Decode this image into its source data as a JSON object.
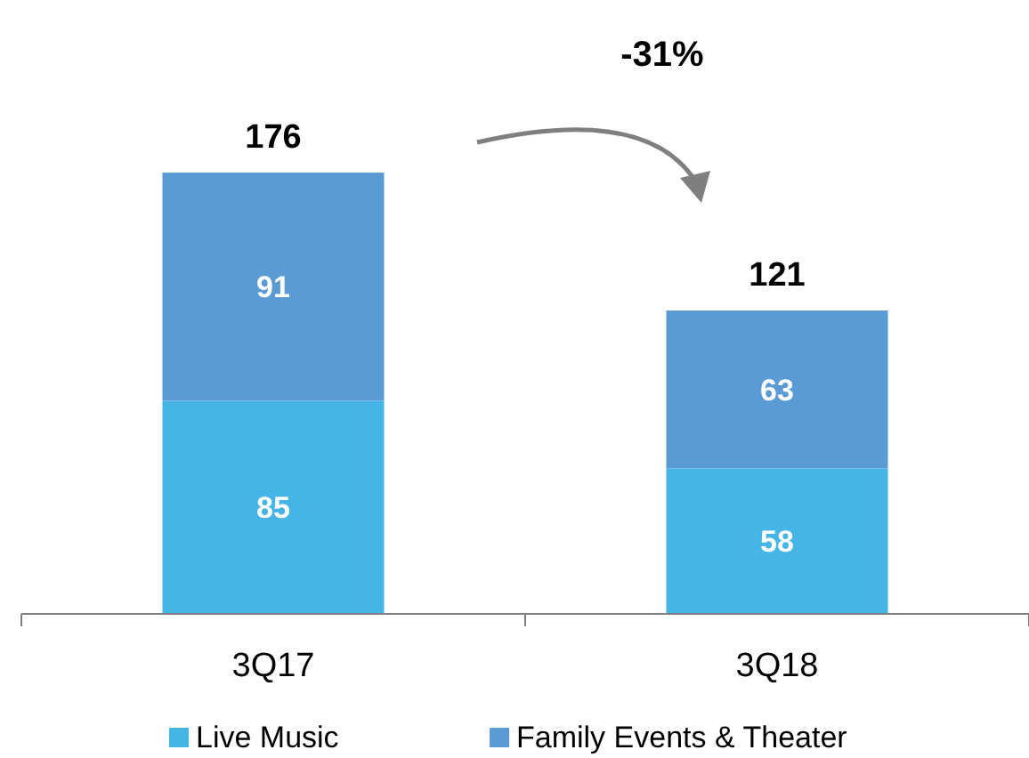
{
  "chart_data": {
    "type": "bar",
    "stacked": true,
    "data_labels": true,
    "legend": "bottom",
    "categories": [
      "3Q17",
      "3Q18"
    ],
    "series": [
      {
        "name": "Live Music",
        "color": "#45b5e5",
        "values": [
          85,
          58
        ]
      },
      {
        "name": "Family Events & Theater",
        "color": "#5b9bd5",
        "values": [
          91,
          63
        ]
      }
    ],
    "totals": [
      "176",
      "121"
    ],
    "annotations": [
      "-31%"
    ]
  }
}
